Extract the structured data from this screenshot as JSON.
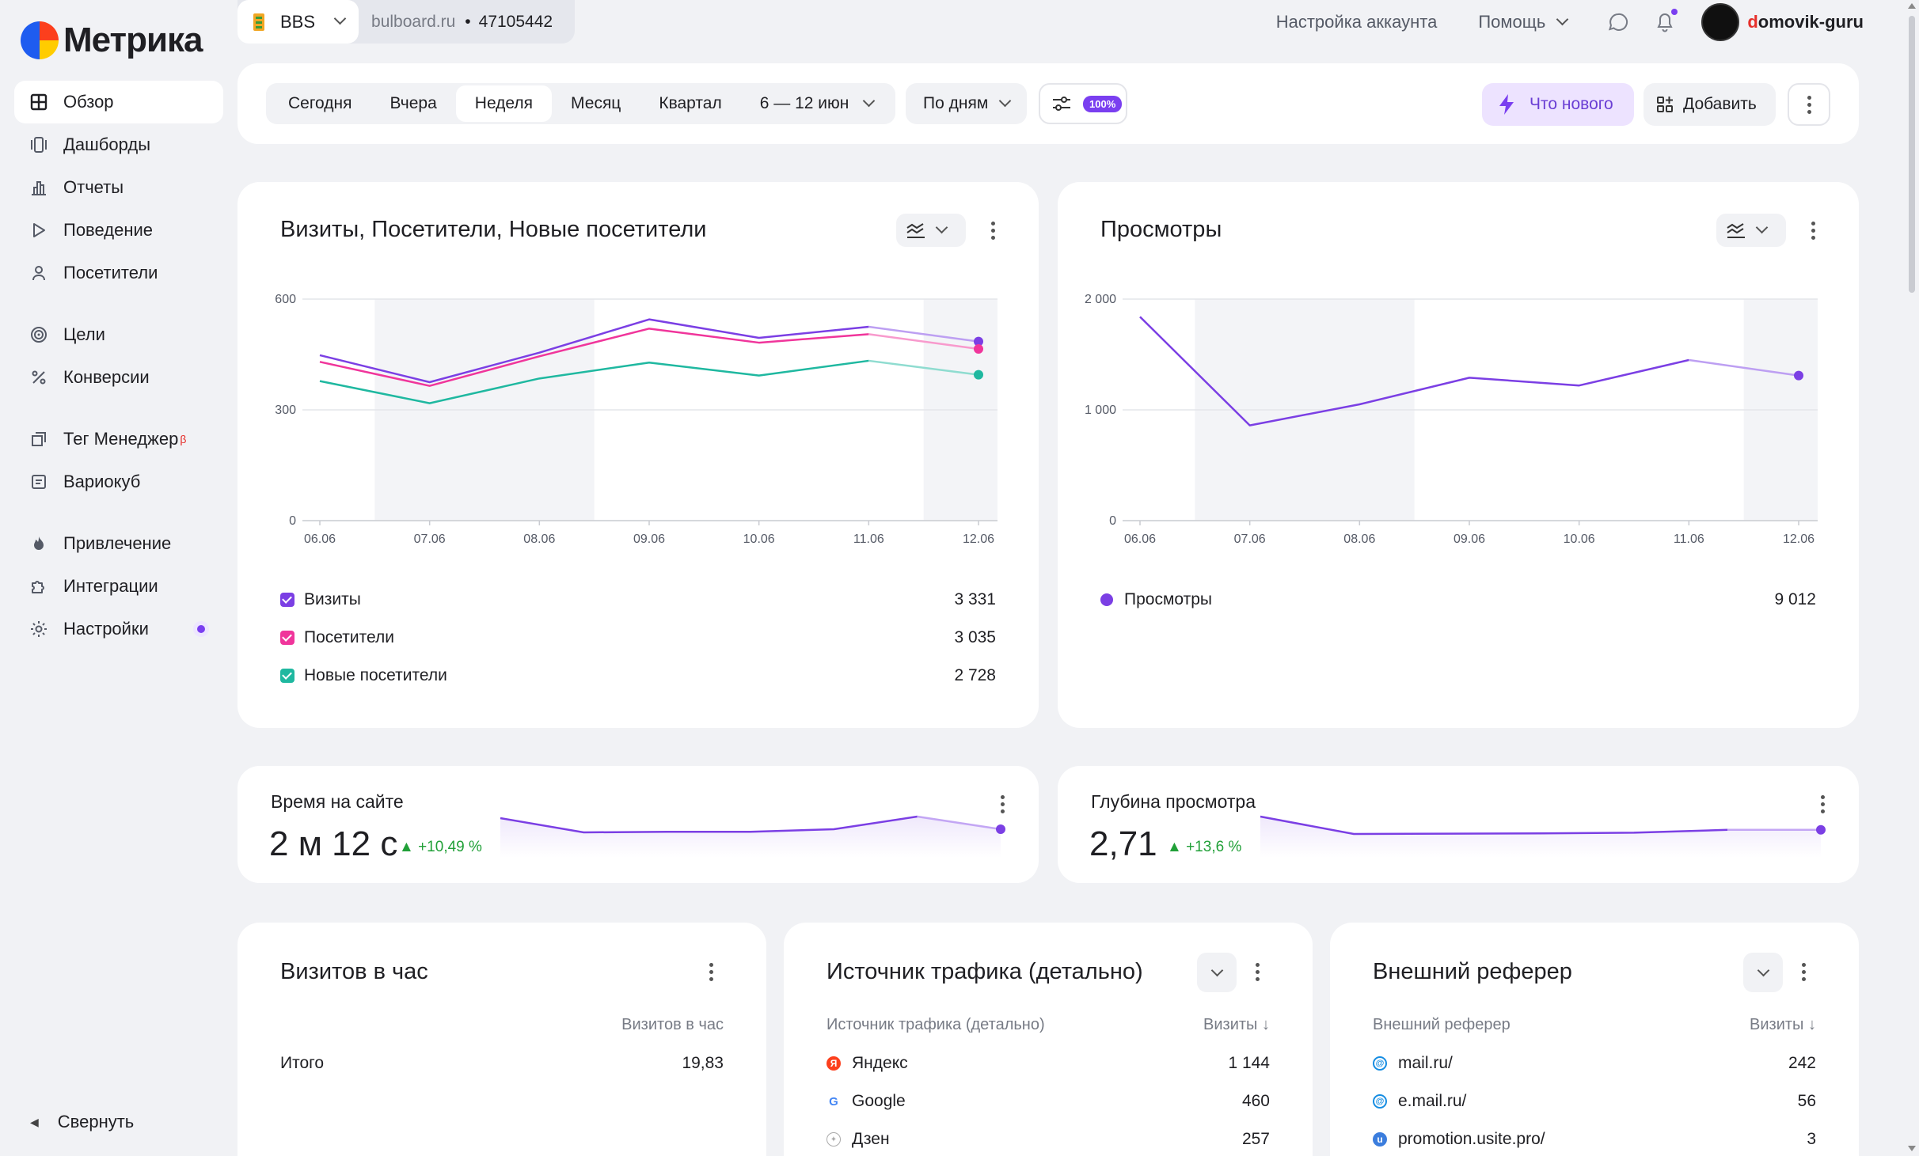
{
  "app": {
    "logo_text": "Метрика"
  },
  "sidebar": {
    "items": [
      {
        "label": "Обзор",
        "icon": "grid-icon"
      },
      {
        "label": "Дашборды",
        "icon": "dashboards-icon"
      },
      {
        "label": "Отчеты",
        "icon": "bar-chart-icon"
      },
      {
        "label": "Поведение",
        "icon": "play-icon"
      },
      {
        "label": "Посетители",
        "icon": "user-icon"
      },
      {
        "label": "Цели",
        "icon": "target-icon"
      },
      {
        "label": "Конверсии",
        "icon": "percent-icon"
      },
      {
        "label": "Тег Менеджер",
        "badge": "β",
        "icon": "tag-manager-icon"
      },
      {
        "label": "Вариокуб",
        "icon": "variocube-icon"
      },
      {
        "label": "Привлечение",
        "icon": "flame-icon"
      },
      {
        "label": "Интеграции",
        "icon": "puzzle-icon"
      },
      {
        "label": "Настройки",
        "icon": "gear-icon"
      }
    ],
    "collapse_label": "Свернуть"
  },
  "topbar": {
    "site_name": "BBS",
    "site_domain": "bulboard.ru",
    "counter_id": "47105442",
    "separator": "•",
    "account_settings": "Настройка аккаунта",
    "help": "Помощь",
    "username_first": "d",
    "username_rest": "omovik-guru"
  },
  "toolbar": {
    "periods": [
      "Сегодня",
      "Вчера",
      "Неделя",
      "Месяц",
      "Квартал"
    ],
    "selected_period": "Неделя",
    "date_range": "6 — 12 июн",
    "grouping": "По дням",
    "sampling_badge": "100%",
    "whats_new": "Что нового",
    "add": "Добавить"
  },
  "colors": {
    "visits": "#7b3fe4",
    "visitors": "#f0359b",
    "new_visitors": "#1fb8a0",
    "accent": "#7a3ff0",
    "positive": "#21a038"
  },
  "visits_card": {
    "title": "Визиты, Посетители, Новые посетители",
    "legend": [
      {
        "label": "Визиты",
        "total": "3 331"
      },
      {
        "label": "Посетители",
        "total": "3 035"
      },
      {
        "label": "Новые посетители",
        "total": "2 728"
      }
    ]
  },
  "views_card": {
    "title": "Просмотры",
    "legend": [
      {
        "label": "Просмотры",
        "total": "9 012"
      }
    ]
  },
  "chart_data": [
    {
      "type": "line",
      "x": [
        "06.06",
        "07.06",
        "08.06",
        "09.06",
        "10.06",
        "11.06",
        "12.06"
      ],
      "y_ticks": [
        "0",
        "300",
        "600"
      ],
      "ylim": [
        0,
        600
      ],
      "shaded_weekends": [
        [
          "07.06",
          "08.06"
        ],
        [
          "12.06",
          "12.06"
        ]
      ],
      "series": [
        {
          "name": "Визиты",
          "values": [
            448,
            375,
            455,
            545,
            495,
            525,
            485
          ]
        },
        {
          "name": "Посетители",
          "values": [
            430,
            365,
            445,
            520,
            482,
            505,
            465
          ]
        },
        {
          "name": "Новые посетители",
          "values": [
            378,
            318,
            385,
            428,
            393,
            433,
            395
          ]
        }
      ]
    },
    {
      "type": "line",
      "x": [
        "06.06",
        "07.06",
        "08.06",
        "09.06",
        "10.06",
        "11.06",
        "12.06"
      ],
      "y_ticks": [
        "0",
        "1 000",
        "2 000"
      ],
      "ylim": [
        0,
        2000
      ],
      "shaded_weekends": [
        [
          "07.06",
          "08.06"
        ],
        [
          "12.06",
          "12.06"
        ]
      ],
      "series": [
        {
          "name": "Просмотры",
          "values": [
            1840,
            860,
            1050,
            1290,
            1220,
            1450,
            1310
          ]
        }
      ]
    }
  ],
  "time_on_site": {
    "title": "Время на сайте",
    "value": "2 м 12 с",
    "change": "▲ +10,49 %",
    "spark": [
      0.85,
      0.4,
      0.42,
      0.42,
      0.5,
      0.9,
      0.5
    ]
  },
  "depth": {
    "title": "Глубина просмотра",
    "value": "2,71",
    "change": "▲ +13,6 %",
    "spark": [
      0.9,
      0.35,
      0.36,
      0.37,
      0.39,
      0.48,
      0.48
    ]
  },
  "visits_per_hour": {
    "title": "Визитов в час",
    "col_header": "Визитов в час",
    "rows": [
      {
        "label": "Итого",
        "value": "19,83"
      }
    ]
  },
  "traffic_source": {
    "title": "Источник трафика (детально)",
    "col1": "Источник трафика (детально)",
    "col2": "Визиты ↓",
    "rows": [
      {
        "label": "Яндекс",
        "value": "1 144",
        "icon": "yandex-icon"
      },
      {
        "label": "Google",
        "value": "460",
        "icon": "google-icon"
      },
      {
        "label": "Дзен",
        "value": "257",
        "icon": "dzen-icon"
      }
    ]
  },
  "referrer": {
    "title": "Внешний реферер",
    "col1": "Внешний реферер",
    "col2": "Визиты ↓",
    "rows": [
      {
        "label": "mail.ru/",
        "value": "242",
        "icon": "mailru-icon"
      },
      {
        "label": "e.mail.ru/",
        "value": "56",
        "icon": "mailru-icon"
      },
      {
        "label": "promotion.usite.pro/",
        "value": "3",
        "icon": "usite-icon"
      }
    ]
  }
}
